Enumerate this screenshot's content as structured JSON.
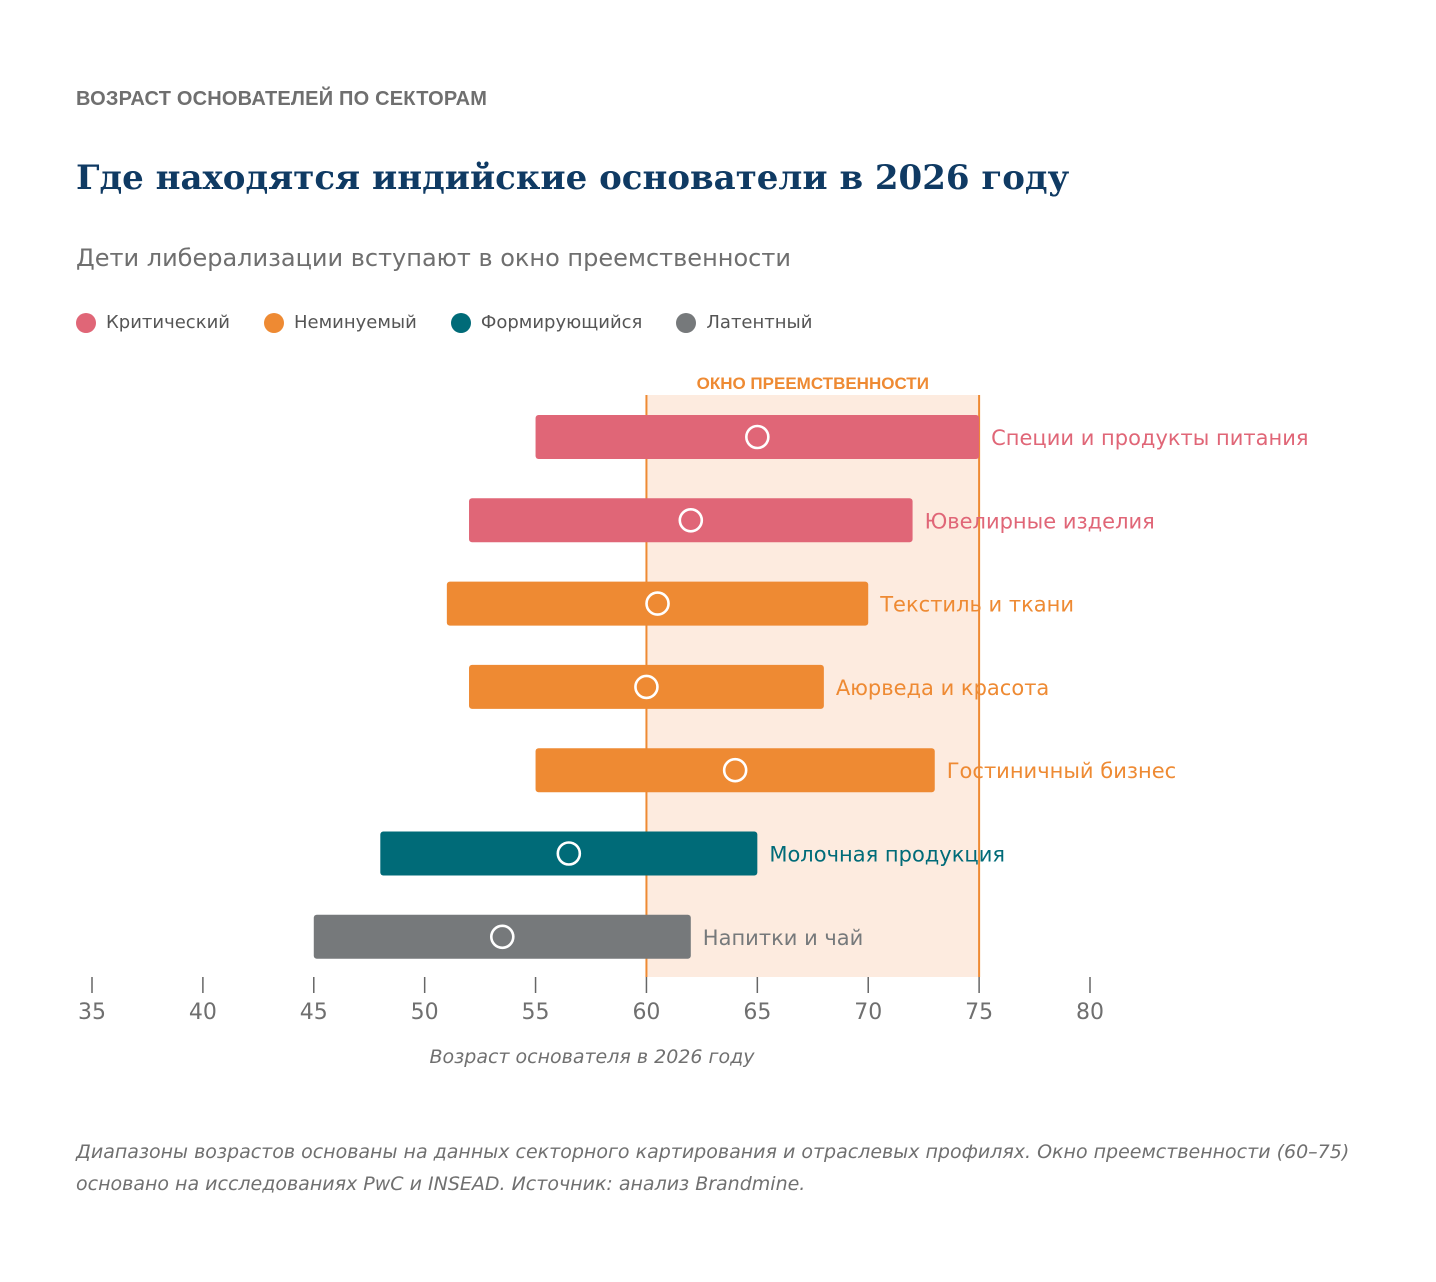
{
  "header": {
    "eyebrow": "ВОЗРАСТ ОСНОВАТЕЛЕЙ ПО СЕКТОРАМ",
    "title": "Где находятся индийские основатели в 2026 году",
    "subtitle": "Дети либерализации вступают в окно преемственности"
  },
  "legend": [
    {
      "label": "Критический",
      "color": "#e06677"
    },
    {
      "label": "Неминуемый",
      "color": "#ee8a33"
    },
    {
      "label": "Формирующийся",
      "color": "#006b78"
    },
    {
      "label": "Латентный",
      "color": "#76797b"
    }
  ],
  "chart_data": {
    "type": "range-bar",
    "window_label": "ОКНО ПРЕЕМСТВЕННОСТИ",
    "window": [
      60,
      75
    ],
    "xlabel": "Возраст основателя в 2026 году",
    "xlim": [
      35,
      80
    ],
    "xticks": [
      35,
      40,
      45,
      50,
      55,
      60,
      65,
      70,
      75,
      80
    ],
    "series": [
      {
        "sector": "Специи и продукты питания",
        "min": 55,
        "max": 75,
        "median": 65,
        "status": "Критический",
        "color": "#e06677"
      },
      {
        "sector": "Ювелирные изделия",
        "min": 52,
        "max": 72,
        "median": 62,
        "status": "Критический",
        "color": "#e06677"
      },
      {
        "sector": "Текстиль и ткани",
        "min": 51,
        "max": 70,
        "median": 60.5,
        "status": "Неминуемый",
        "color": "#ee8a33"
      },
      {
        "sector": "Аюрведа и красота",
        "min": 52,
        "max": 68,
        "median": 60,
        "status": "Неминуемый",
        "color": "#ee8a33"
      },
      {
        "sector": "Гостиничный бизнес",
        "min": 55,
        "max": 73,
        "median": 64,
        "status": "Неминуемый",
        "color": "#ee8a33"
      },
      {
        "sector": "Молочная продукция",
        "min": 48,
        "max": 65,
        "median": 56.5,
        "status": "Формирующийся",
        "color": "#006b78"
      },
      {
        "sector": "Напитки и чай",
        "min": 45,
        "max": 62,
        "median": 53.5,
        "status": "Латентный",
        "color": "#76797b"
      }
    ]
  },
  "footnote": "Диапазоны возрастов основаны на данных секторного картирования и отраслевых профилях. Окно преемственности (60–75) основано на исследованиях PwC и INSEAD. Источник: анализ Brandmine.",
  "colors": {
    "window_fill": "#fdebdf",
    "window_line": "#ee8a33",
    "axis": "#555555",
    "title": "#0f3a63"
  }
}
